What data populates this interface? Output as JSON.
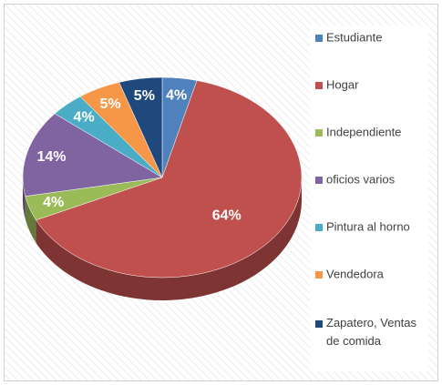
{
  "chart_data": {
    "type": "pie",
    "categories": [
      "Estudiante",
      "Hogar",
      "Independiente",
      "oficios varios",
      "Pintura al horno",
      "Vendedora",
      "Zapatero, Ventas de comida"
    ],
    "values": [
      4,
      64,
      4,
      14,
      4,
      5,
      5
    ],
    "value_labels": [
      "4%",
      "64%",
      "4%",
      "14%",
      "4%",
      "5%",
      "5%"
    ],
    "colors": [
      "#4f81bd",
      "#c0504d",
      "#9bbb59",
      "#8064a2",
      "#4bacc6",
      "#f79646",
      "#1f497d"
    ],
    "legend": "right"
  }
}
